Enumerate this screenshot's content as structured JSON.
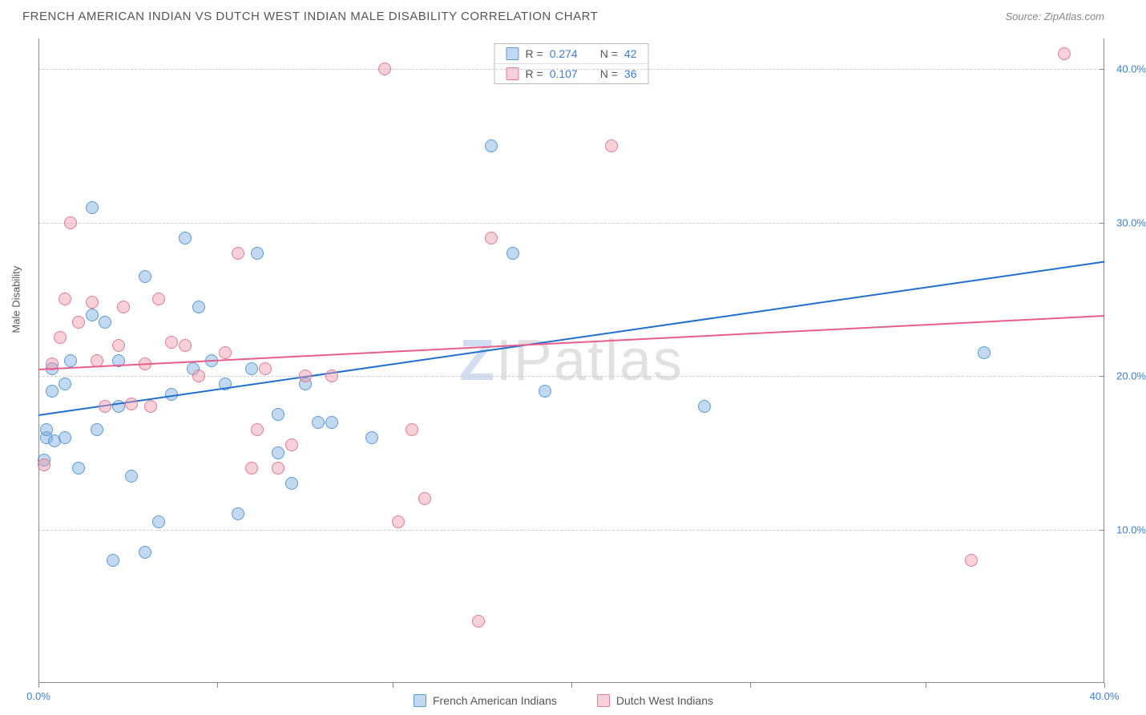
{
  "header": {
    "title": "FRENCH AMERICAN INDIAN VS DUTCH WEST INDIAN MALE DISABILITY CORRELATION CHART",
    "source": "Source: ZipAtlas.com"
  },
  "chart": {
    "type": "scatter",
    "y_axis_label": "Male Disability",
    "background_color": "#ffffff",
    "grid_color": "#cccccc",
    "axis_color": "#888888",
    "tick_label_color": "#3b7dd8",
    "xlim": [
      0,
      40
    ],
    "ylim": [
      0,
      42
    ],
    "x_ticks": [
      {
        "v": 0,
        "label": "0.0%"
      },
      {
        "v": 40,
        "label": "40.0%"
      }
    ],
    "x_tick_marks": [
      0,
      6.7,
      13.3,
      20,
      26.7,
      33.3,
      40
    ],
    "y_ticks": [
      {
        "v": 10,
        "label": "10.0%"
      },
      {
        "v": 20,
        "label": "20.0%"
      },
      {
        "v": 30,
        "label": "30.0%"
      },
      {
        "v": 40,
        "label": "40.0%"
      }
    ],
    "watermark": {
      "z": "Z",
      "rest": "IPatlas"
    },
    "series": [
      {
        "id": "french",
        "name": "French American Indians",
        "fill": "rgba(120,170,225,0.45)",
        "stroke": "#5a9bd5",
        "line_color": "#1f6fd1",
        "marker_size": 16,
        "R": "0.274",
        "N": "42",
        "trend": {
          "x1": 0,
          "y1": 17.5,
          "x2": 40,
          "y2": 27.5
        },
        "points": [
          [
            0.2,
            14.5
          ],
          [
            0.3,
            16
          ],
          [
            0.3,
            16.5
          ],
          [
            0.5,
            19
          ],
          [
            0.5,
            20.5
          ],
          [
            0.6,
            15.8
          ],
          [
            1,
            16
          ],
          [
            1,
            19.5
          ],
          [
            1.2,
            21
          ],
          [
            1.5,
            14
          ],
          [
            2,
            24
          ],
          [
            2,
            31
          ],
          [
            2.2,
            16.5
          ],
          [
            2.5,
            23.5
          ],
          [
            2.8,
            8
          ],
          [
            3,
            21
          ],
          [
            3,
            18
          ],
          [
            3.5,
            13.5
          ],
          [
            4,
            8.5
          ],
          [
            4,
            26.5
          ],
          [
            4.5,
            10.5
          ],
          [
            5,
            18.8
          ],
          [
            5.5,
            29
          ],
          [
            5.8,
            20.5
          ],
          [
            6,
            24.5
          ],
          [
            6.5,
            21
          ],
          [
            7,
            19.5
          ],
          [
            7.5,
            11
          ],
          [
            8,
            20.5
          ],
          [
            8.2,
            28
          ],
          [
            9,
            15
          ],
          [
            9,
            17.5
          ],
          [
            9.5,
            13
          ],
          [
            10,
            19.5
          ],
          [
            10.5,
            17
          ],
          [
            11,
            17
          ],
          [
            12.5,
            16
          ],
          [
            17,
            35
          ],
          [
            17.8,
            28
          ],
          [
            19,
            19
          ],
          [
            25,
            18
          ],
          [
            35.5,
            21.5
          ]
        ]
      },
      {
        "id": "dutch",
        "name": "Dutch West Indians",
        "fill": "rgba(240,150,170,0.45)",
        "stroke": "#e07c95",
        "line_color": "#e85d8a",
        "marker_size": 16,
        "R": "0.107",
        "N": "36",
        "trend": {
          "x1": 0,
          "y1": 20.5,
          "x2": 40,
          "y2": 24
        },
        "points": [
          [
            0.2,
            14.2
          ],
          [
            0.5,
            20.8
          ],
          [
            0.8,
            22.5
          ],
          [
            1,
            25
          ],
          [
            1.2,
            30
          ],
          [
            1.5,
            23.5
          ],
          [
            2,
            24.8
          ],
          [
            2.2,
            21
          ],
          [
            2.5,
            18
          ],
          [
            3,
            22
          ],
          [
            3.2,
            24.5
          ],
          [
            3.5,
            18.2
          ],
          [
            4,
            20.8
          ],
          [
            4.2,
            18
          ],
          [
            4.5,
            25
          ],
          [
            5,
            22.2
          ],
          [
            5.5,
            22
          ],
          [
            6,
            20
          ],
          [
            7,
            21.5
          ],
          [
            7.5,
            28
          ],
          [
            8,
            14
          ],
          [
            8.2,
            16.5
          ],
          [
            8.5,
            20.5
          ],
          [
            9,
            14
          ],
          [
            9.5,
            15.5
          ],
          [
            10,
            20
          ],
          [
            11,
            20
          ],
          [
            13,
            40
          ],
          [
            13.5,
            10.5
          ],
          [
            14,
            16.5
          ],
          [
            14.5,
            12
          ],
          [
            16.5,
            4
          ],
          [
            17,
            29
          ],
          [
            21.5,
            35
          ],
          [
            35,
            8
          ],
          [
            38.5,
            41
          ]
        ]
      }
    ],
    "stats_legend": {
      "r_prefix": "R =",
      "n_prefix": "N ="
    },
    "bottom_legend_items": [
      {
        "series": "french"
      },
      {
        "series": "dutch"
      }
    ]
  }
}
